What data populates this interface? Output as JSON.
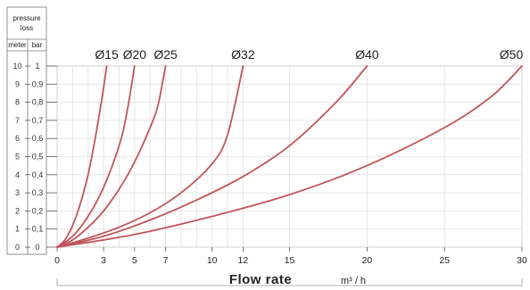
{
  "chart_data": {
    "type": "line",
    "y_header": "pressure loss",
    "y_units": [
      "meter",
      "bar"
    ],
    "y_ticks_meter": [
      "10",
      "9",
      "8",
      "7",
      "6",
      "5",
      "4",
      "3",
      "2",
      "1",
      "0"
    ],
    "y_ticks_bar": [
      "1",
      "0,9",
      "0,8",
      "0,7",
      "0,6",
      "0,5",
      "0,4",
      "0,3",
      "0,2",
      "0,1",
      "0"
    ],
    "ylim": [
      0,
      1
    ],
    "xlim": [
      0,
      30
    ],
    "x_ticks": [
      "0",
      "3",
      "5",
      "7",
      "10",
      "12",
      "15",
      "20",
      "25",
      "30"
    ],
    "xlabel": "Flow rate",
    "xunit": "m³ / h",
    "grid": true,
    "color": "#c0565a",
    "series": [
      {
        "name": "Ø15",
        "x": [
          0,
          0.5,
          1,
          1.5,
          2,
          2.5,
          3,
          3.2
        ],
        "y": [
          0,
          0.04,
          0.12,
          0.24,
          0.4,
          0.62,
          0.88,
          1.0
        ]
      },
      {
        "name": "Ø20",
        "x": [
          0,
          1,
          2,
          3,
          4,
          4.5,
          5
        ],
        "y": [
          0,
          0.06,
          0.17,
          0.33,
          0.56,
          0.74,
          1.0
        ]
      },
      {
        "name": "Ø25",
        "x": [
          0,
          1,
          2,
          3,
          4,
          5,
          6,
          6.5,
          7
        ],
        "y": [
          0,
          0.04,
          0.11,
          0.2,
          0.32,
          0.47,
          0.66,
          0.78,
          1.0
        ]
      },
      {
        "name": "Ø32",
        "x": [
          0,
          2,
          4,
          6,
          8,
          10,
          11,
          12
        ],
        "y": [
          0,
          0.05,
          0.11,
          0.19,
          0.3,
          0.46,
          0.62,
          1.0
        ]
      },
      {
        "name": "Ø40",
        "x": [
          0,
          3,
          6,
          9,
          12,
          15,
          18,
          20
        ],
        "y": [
          0,
          0.06,
          0.15,
          0.26,
          0.39,
          0.56,
          0.8,
          1.0
        ]
      },
      {
        "name": "Ø50",
        "x": [
          0,
          5,
          10,
          15,
          20,
          25,
          28,
          30
        ],
        "y": [
          0,
          0.07,
          0.17,
          0.29,
          0.45,
          0.66,
          0.83,
          1.0
        ]
      }
    ]
  }
}
